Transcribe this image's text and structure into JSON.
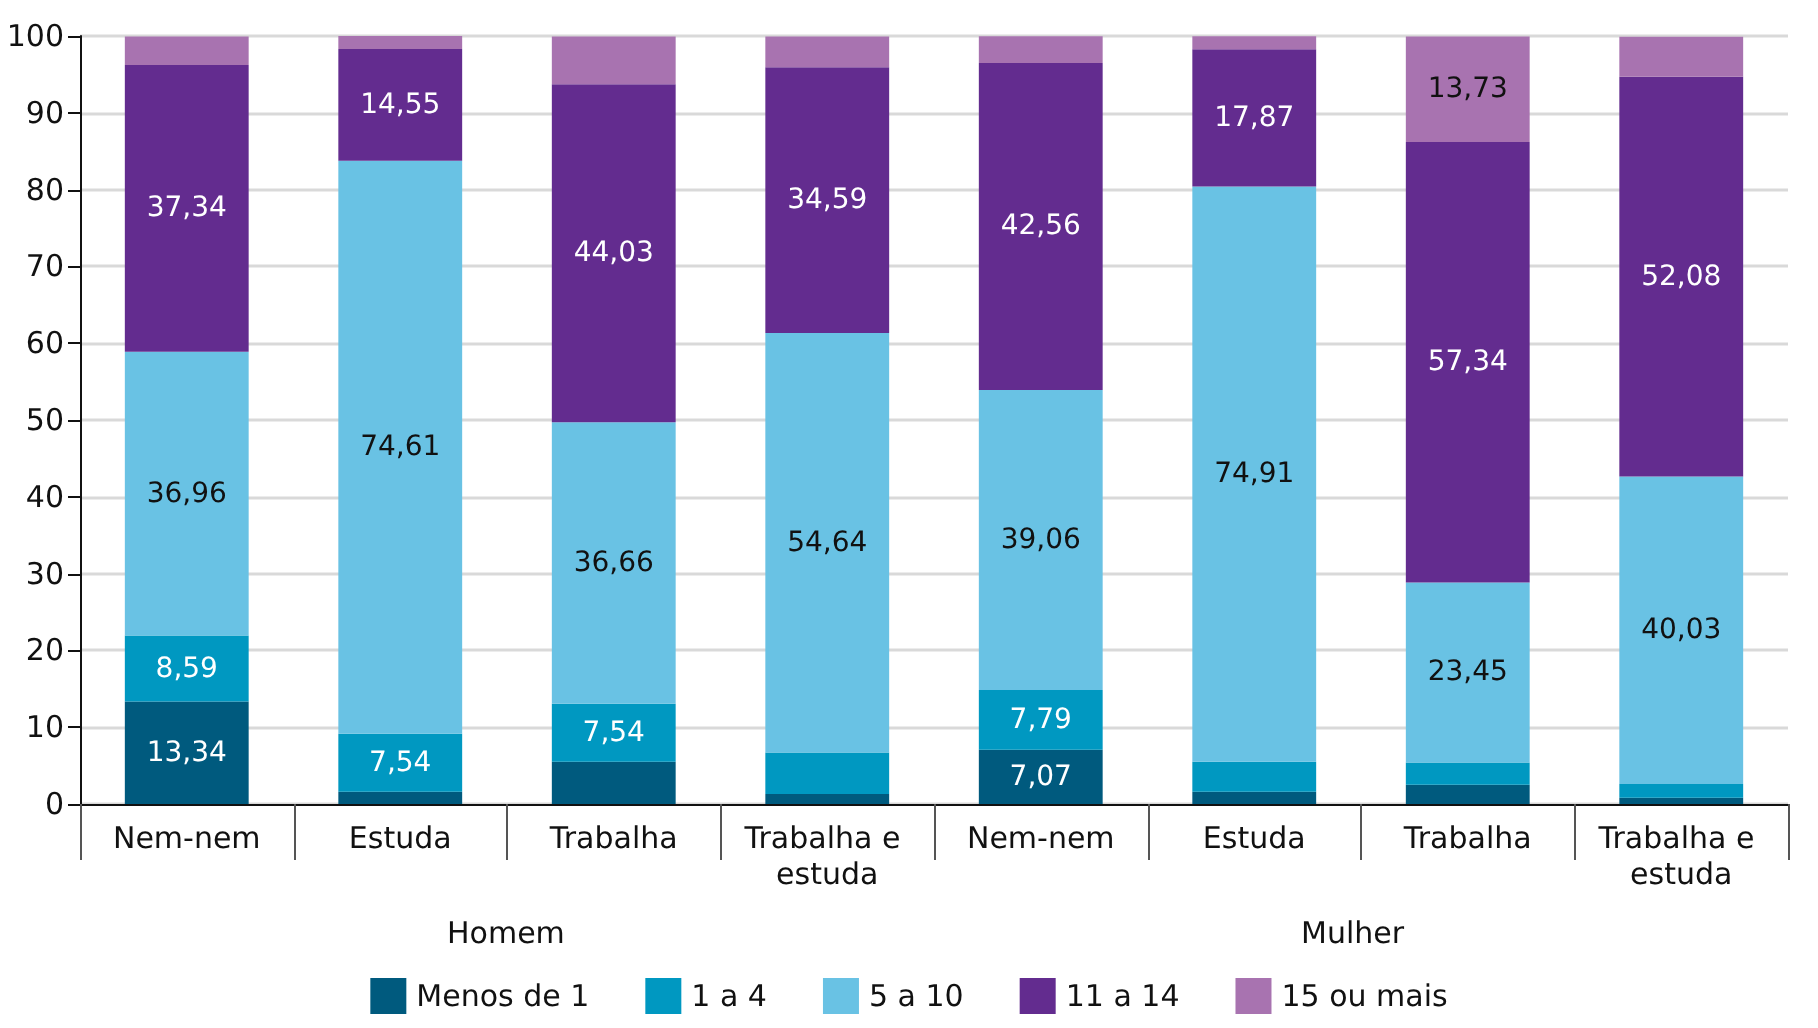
{
  "chart_data": {
    "type": "bar",
    "stacked": true,
    "categories": [
      "Nem-nem",
      "Estuda",
      "Trabalha",
      "Trabalha e estuda",
      "Nem-nem",
      "Estuda",
      "Trabalha",
      "Trabalha e estuda"
    ],
    "series": [
      {
        "name": "Menos de 1",
        "color": "#005a7e",
        "values": [
          13.34,
          1.6,
          5.5,
          1.3,
          7.07,
          1.6,
          2.5,
          0.8
        ],
        "value_labels": [
          "13,34",
          null,
          null,
          null,
          "7,07",
          null,
          null,
          null
        ]
      },
      {
        "name": "1 a 4",
        "color": "#0098c1",
        "values": [
          8.59,
          7.54,
          7.54,
          5.4,
          7.79,
          3.9,
          2.9,
          1.8
        ],
        "value_labels": [
          "8,59",
          "7,54",
          "7,54",
          null,
          "7,79",
          null,
          null,
          null
        ]
      },
      {
        "name": "5 a 10",
        "color": "#69c2e4",
        "values": [
          36.96,
          74.61,
          36.66,
          54.64,
          39.06,
          74.91,
          23.45,
          40.03
        ],
        "value_labels": [
          "36,96",
          "74,61",
          "36,66",
          "54,64",
          "39,06",
          "74,91",
          "23,45",
          "40,03"
        ]
      },
      {
        "name": "11 a 14",
        "color": "#632c8f",
        "values": [
          37.34,
          14.55,
          44.03,
          34.59,
          42.56,
          17.87,
          57.34,
          52.08
        ],
        "value_labels": [
          "37,34",
          "14,55",
          "44,03",
          "34,59",
          "42,56",
          "17,87",
          "57,34",
          "52,08"
        ]
      },
      {
        "name": "15 ou mais",
        "color": "#a873b0",
        "values": [
          3.7,
          1.7,
          6.2,
          4.0,
          3.5,
          1.7,
          13.73,
          5.2
        ],
        "value_labels": [
          null,
          null,
          null,
          null,
          null,
          null,
          "13,73",
          null
        ]
      }
    ],
    "ylim": [
      0,
      100
    ],
    "yticks": [
      0,
      10,
      20,
      30,
      40,
      50,
      60,
      70,
      80,
      90,
      100
    ],
    "grid": "y",
    "legend": "bottom",
    "annotations": [
      "Homem",
      "Mulher"
    ]
  }
}
